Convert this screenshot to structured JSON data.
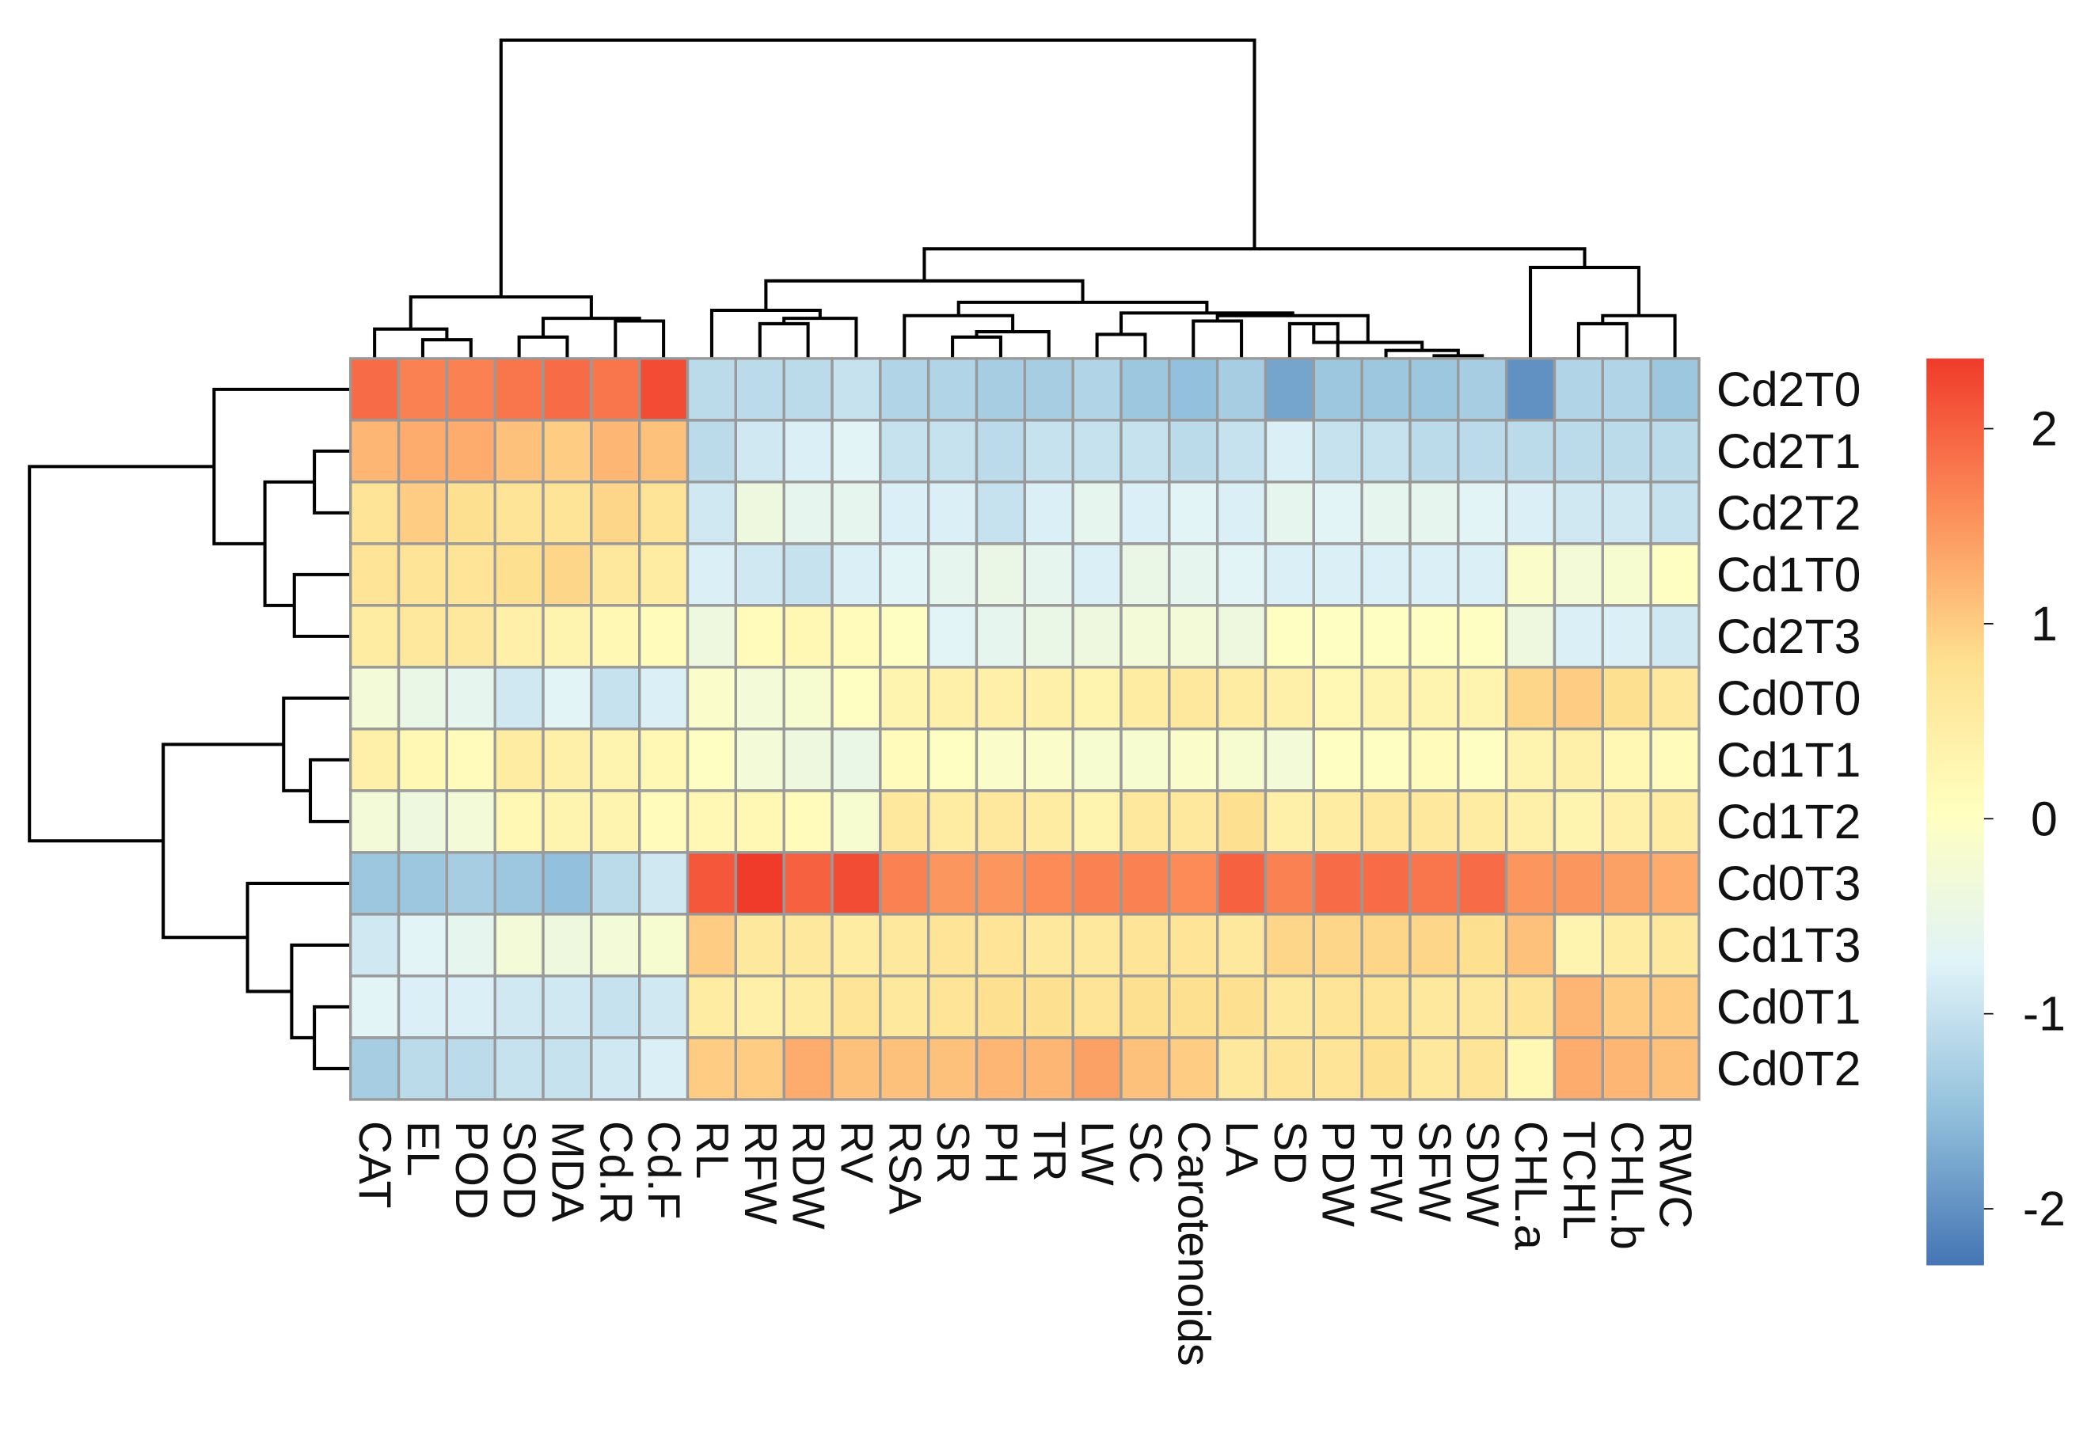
{
  "chart_data": {
    "type": "heatmap",
    "rows": [
      "Cd2T0",
      "Cd2T1",
      "Cd2T2",
      "Cd1T0",
      "Cd2T3",
      "Cd0T0",
      "Cd1T1",
      "Cd1T2",
      "Cd0T3",
      "Cd1T3",
      "Cd0T1",
      "Cd0T2"
    ],
    "columns": [
      "CAT",
      "EL",
      "POD",
      "SOD",
      "MDA",
      "Cd.R",
      "Cd.F",
      "RL",
      "RFW",
      "RDW",
      "RV",
      "RSA",
      "SR",
      "PH",
      "TR",
      "LW",
      "SC",
      "Carotenoids",
      "LA",
      "SD",
      "PDW",
      "PFW",
      "SFW",
      "SDW",
      "CHL.a",
      "TCHL",
      "CHL.b",
      "RWC"
    ],
    "values": [
      [
        1.9,
        1.7,
        1.7,
        1.8,
        1.9,
        1.8,
        2.2,
        -1.1,
        -1.1,
        -1.1,
        -1.0,
        -1.2,
        -1.2,
        -1.3,
        -1.3,
        -1.2,
        -1.4,
        -1.5,
        -1.3,
        -1.8,
        -1.4,
        -1.4,
        -1.4,
        -1.3,
        -2.0,
        -1.2,
        -1.2,
        -1.4
      ],
      [
        1.2,
        1.3,
        1.3,
        1.1,
        1.0,
        1.2,
        1.1,
        -1.1,
        -0.9,
        -0.8,
        -0.7,
        -1.0,
        -1.0,
        -1.1,
        -1.0,
        -1.0,
        -1.0,
        -1.1,
        -1.0,
        -0.8,
        -1.0,
        -1.0,
        -1.1,
        -1.1,
        -1.1,
        -1.1,
        -1.1,
        -1.1
      ],
      [
        0.7,
        1.0,
        0.8,
        0.7,
        0.7,
        0.9,
        0.7,
        -0.9,
        -0.4,
        -0.6,
        -0.6,
        -0.8,
        -0.8,
        -1.0,
        -0.8,
        -0.6,
        -0.8,
        -0.7,
        -0.8,
        -0.6,
        -0.7,
        -0.6,
        -0.6,
        -0.7,
        -0.8,
        -0.9,
        -0.9,
        -1.0
      ],
      [
        0.7,
        0.7,
        0.7,
        0.8,
        0.9,
        0.6,
        0.5,
        -0.8,
        -0.9,
        -1.0,
        -0.8,
        -0.7,
        -0.6,
        -0.5,
        -0.6,
        -0.8,
        -0.5,
        -0.6,
        -0.7,
        -0.8,
        -0.8,
        -0.8,
        -0.8,
        -0.8,
        -0.1,
        -0.3,
        -0.2,
        0.0
      ],
      [
        0.5,
        0.6,
        0.6,
        0.4,
        0.3,
        0.2,
        0.1,
        -0.4,
        0.1,
        0.2,
        0.1,
        0.0,
        -0.7,
        -0.6,
        -0.5,
        -0.4,
        -0.3,
        -0.3,
        -0.4,
        0.0,
        0.0,
        0.0,
        0.0,
        0.0,
        -0.4,
        -0.8,
        -0.8,
        -0.9
      ],
      [
        -0.3,
        -0.5,
        -0.6,
        -0.9,
        -0.7,
        -1.0,
        -0.8,
        -0.1,
        -0.3,
        -0.2,
        0.0,
        0.3,
        0.4,
        0.4,
        0.4,
        0.3,
        0.5,
        0.6,
        0.5,
        0.4,
        0.2,
        0.3,
        0.3,
        0.3,
        0.9,
        1.0,
        0.8,
        0.6
      ],
      [
        0.4,
        0.2,
        0.1,
        0.5,
        0.4,
        0.3,
        0.2,
        0.0,
        -0.3,
        -0.4,
        -0.5,
        0.1,
        0.0,
        -0.1,
        -0.1,
        -0.2,
        -0.2,
        -0.1,
        -0.2,
        -0.3,
        0.0,
        0.0,
        0.1,
        0.0,
        0.3,
        0.4,
        0.2,
        0.1
      ],
      [
        -0.3,
        -0.4,
        -0.3,
        0.2,
        0.3,
        0.3,
        0.1,
        0.2,
        0.2,
        0.1,
        -0.2,
        0.6,
        0.5,
        0.6,
        0.5,
        0.3,
        0.6,
        0.6,
        0.8,
        0.4,
        0.5,
        0.6,
        0.6,
        0.5,
        0.4,
        0.3,
        0.4,
        0.5
      ],
      [
        -1.4,
        -1.4,
        -1.3,
        -1.4,
        -1.5,
        -1.1,
        -0.9,
        2.1,
        2.4,
        2.0,
        2.2,
        1.7,
        1.5,
        1.5,
        1.6,
        1.7,
        1.7,
        1.6,
        2.0,
        1.7,
        1.9,
        1.9,
        1.8,
        1.9,
        1.5,
        1.5,
        1.4,
        1.3
      ],
      [
        -0.9,
        -0.7,
        -0.6,
        -0.3,
        -0.4,
        -0.3,
        -0.2,
        1.0,
        0.6,
        0.6,
        0.5,
        0.6,
        0.7,
        0.7,
        0.6,
        0.6,
        0.7,
        0.7,
        0.6,
        0.9,
        0.9,
        0.9,
        0.9,
        0.8,
        1.1,
        0.3,
        0.5,
        0.6
      ],
      [
        -0.7,
        -0.8,
        -0.8,
        -0.9,
        -0.9,
        -1.0,
        -0.9,
        0.5,
        0.4,
        0.5,
        0.7,
        0.6,
        0.7,
        0.8,
        0.8,
        0.7,
        0.8,
        0.8,
        0.8,
        0.6,
        0.7,
        0.7,
        0.6,
        0.6,
        0.7,
        1.2,
        1.0,
        1.0
      ],
      [
        -1.3,
        -1.1,
        -1.1,
        -1.0,
        -1.0,
        -0.9,
        -0.8,
        1.0,
        1.0,
        1.3,
        1.1,
        1.1,
        1.1,
        1.2,
        1.2,
        1.4,
        1.1,
        1.0,
        0.6,
        0.7,
        0.7,
        0.8,
        0.6,
        0.7,
        0.2,
        1.3,
        1.2,
        1.1
      ]
    ],
    "colors": [
      "#4575b4",
      "#91bfdb",
      "#e0f3f8",
      "#ffffbf",
      "#fee090",
      "#fc8d59",
      "#f03b2a"
    ],
    "colorbar_lim": [
      -2.29,
      2.36
    ],
    "colorbar_ticks": [
      2,
      1,
      0,
      -1,
      -2
    ]
  }
}
